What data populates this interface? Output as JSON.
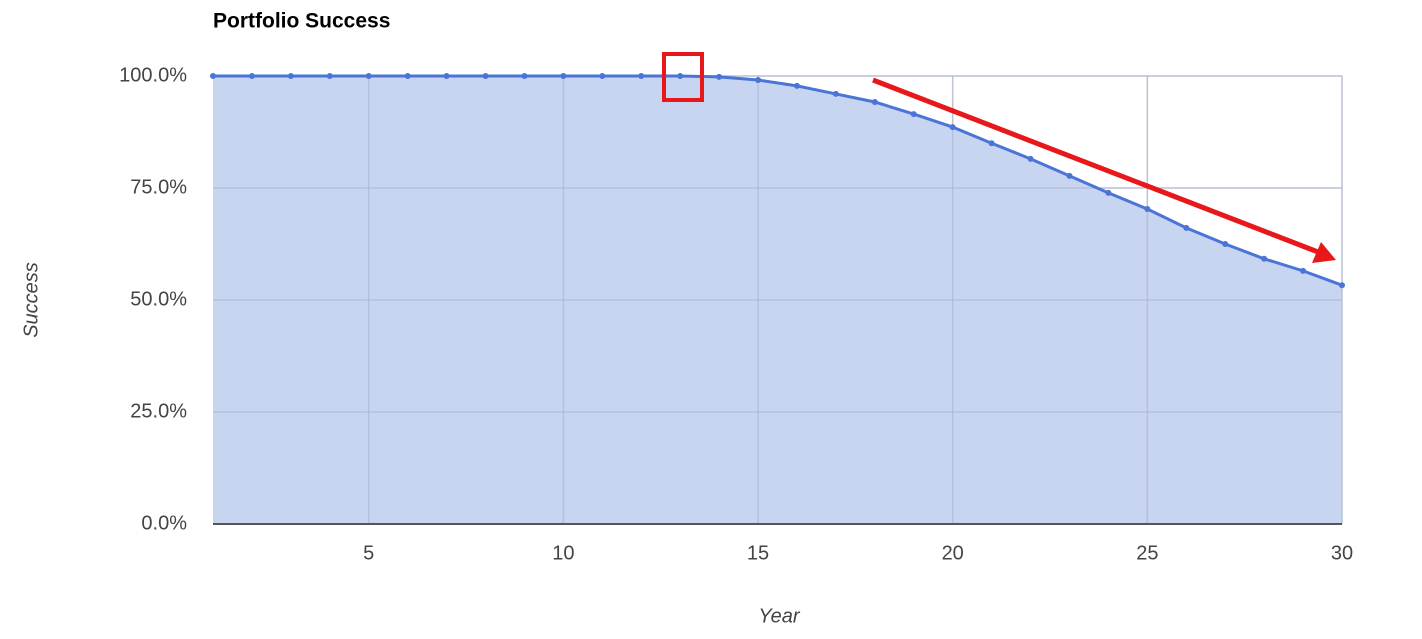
{
  "chart_data": {
    "type": "area",
    "title": "Portfolio Success",
    "x_label": "Year",
    "y_label": "Success",
    "x": [
      1,
      2,
      3,
      4,
      5,
      6,
      7,
      8,
      9,
      10,
      11,
      12,
      13,
      14,
      15,
      16,
      17,
      18,
      19,
      20,
      21,
      22,
      23,
      24,
      25,
      26,
      27,
      28,
      29,
      30
    ],
    "values": [
      100,
      100,
      100,
      100,
      100,
      100,
      100,
      100,
      100,
      100,
      100,
      100,
      100,
      99.8,
      99.1,
      97.8,
      96.0,
      94.2,
      91.5,
      88.6,
      85.0,
      81.5,
      77.7,
      73.9,
      70.3,
      66.1,
      62.5,
      59.2,
      56.5,
      53.3
    ],
    "color": "#4a74d6",
    "fill": "#c5d3ef",
    "xlim": [
      1,
      30
    ],
    "xticks": [
      5,
      10,
      15,
      20,
      25,
      30
    ],
    "ylim": [
      0,
      100
    ],
    "yticks": [
      {
        "value": 0,
        "label": "0.0%"
      },
      {
        "value": 25,
        "label": "25.0%"
      },
      {
        "value": 50,
        "label": "50.0%"
      },
      {
        "value": 75,
        "label": "75.0%"
      },
      {
        "value": 100,
        "label": "100.0%"
      }
    ],
    "grid": true
  }
}
